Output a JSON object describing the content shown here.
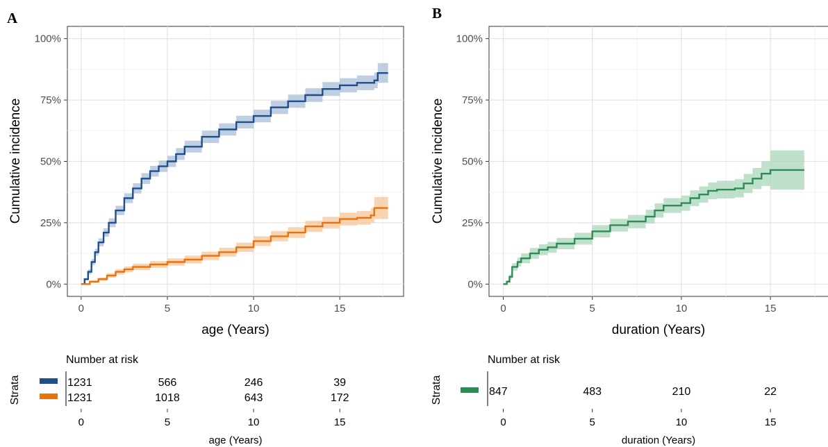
{
  "chart_data": [
    {
      "panel": "A",
      "type": "line",
      "xlabel": "age (Years)",
      "ylabel": "Cumulative incidence",
      "xlim": [
        -0.8,
        18.7
      ],
      "ylim": [
        -0.05,
        1.05
      ],
      "x_ticks": [
        0,
        5,
        10,
        15
      ],
      "y_ticks": [
        0,
        0.25,
        0.5,
        0.75,
        1.0
      ],
      "y_tick_labels": [
        "0%",
        "25%",
        "50%",
        "75%",
        "100%"
      ],
      "grid": true,
      "series": [
        {
          "color": "#1f4e8c",
          "band_color": "#a9bdd6",
          "points": [
            [
              0,
              0
            ],
            [
              0.2,
              0.02
            ],
            [
              0.4,
              0.05
            ],
            [
              0.6,
              0.09
            ],
            [
              0.8,
              0.13
            ],
            [
              1,
              0.17
            ],
            [
              1.3,
              0.21
            ],
            [
              1.6,
              0.25
            ],
            [
              2,
              0.3
            ],
            [
              2.5,
              0.35
            ],
            [
              3,
              0.39
            ],
            [
              3.5,
              0.43
            ],
            [
              4,
              0.46
            ],
            [
              4.5,
              0.48
            ],
            [
              5,
              0.5
            ],
            [
              5.5,
              0.53
            ],
            [
              6,
              0.56
            ],
            [
              7,
              0.6
            ],
            [
              8,
              0.63
            ],
            [
              9,
              0.66
            ],
            [
              10,
              0.685
            ],
            [
              11,
              0.72
            ],
            [
              12,
              0.745
            ],
            [
              13,
              0.77
            ],
            [
              14,
              0.795
            ],
            [
              15,
              0.81
            ],
            [
              16,
              0.82
            ],
            [
              17,
              0.83
            ],
            [
              17.2,
              0.86
            ],
            [
              17.8,
              0.86
            ]
          ],
          "band_halfwidth": [
            0,
            0.005,
            0.01,
            0.012,
            0.014,
            0.016,
            0.017,
            0.018,
            0.019,
            0.02,
            0.021,
            0.022,
            0.022,
            0.023,
            0.023,
            0.024,
            0.024,
            0.025,
            0.025,
            0.026,
            0.026,
            0.027,
            0.027,
            0.028,
            0.028,
            0.029,
            0.03,
            0.032,
            0.04,
            0.04
          ]
        },
        {
          "color": "#e8720c",
          "band_color": "#f7c59a",
          "points": [
            [
              0,
              0
            ],
            [
              0.5,
              0.01
            ],
            [
              1,
              0.02
            ],
            [
              1.5,
              0.035
            ],
            [
              2,
              0.05
            ],
            [
              2.5,
              0.06
            ],
            [
              3,
              0.07
            ],
            [
              4,
              0.08
            ],
            [
              5,
              0.09
            ],
            [
              6,
              0.1
            ],
            [
              7,
              0.115
            ],
            [
              8,
              0.13
            ],
            [
              9,
              0.15
            ],
            [
              10,
              0.175
            ],
            [
              11,
              0.195
            ],
            [
              12,
              0.21
            ],
            [
              13,
              0.235
            ],
            [
              14,
              0.25
            ],
            [
              15,
              0.265
            ],
            [
              16,
              0.27
            ],
            [
              16.8,
              0.28
            ],
            [
              17,
              0.31
            ],
            [
              17.8,
              0.31
            ]
          ],
          "band_halfwidth": [
            0,
            0.005,
            0.007,
            0.009,
            0.011,
            0.012,
            0.013,
            0.014,
            0.015,
            0.016,
            0.017,
            0.018,
            0.019,
            0.02,
            0.021,
            0.022,
            0.023,
            0.024,
            0.026,
            0.028,
            0.03,
            0.045,
            0.045
          ]
        }
      ],
      "risk_table": {
        "title": "Number at risk",
        "strata_label": "Strata",
        "xlabel": "age (Years)",
        "times": [
          0,
          5,
          10,
          15
        ],
        "rows": [
          {
            "color": "#1f4e8c",
            "counts": [
              "1231",
              "566",
              "246",
              "39"
            ]
          },
          {
            "color": "#e8720c",
            "counts": [
              "1231",
              "1018",
              "643",
              "172"
            ]
          }
        ]
      }
    },
    {
      "panel": "B",
      "type": "line",
      "xlabel": "duration (Years)",
      "ylabel": "Cumulative incidence",
      "xlim": [
        -0.8,
        18.7
      ],
      "ylim": [
        -0.05,
        1.05
      ],
      "x_ticks": [
        0,
        5,
        10,
        15
      ],
      "y_ticks": [
        0,
        0.25,
        0.5,
        0.75,
        1.0
      ],
      "y_tick_labels": [
        "0%",
        "25%",
        "50%",
        "75%",
        "100%"
      ],
      "grid": true,
      "series": [
        {
          "color": "#2e8b57",
          "band_color": "#a9d5b9",
          "points": [
            [
              0,
              0
            ],
            [
              0.2,
              0.01
            ],
            [
              0.35,
              0.03
            ],
            [
              0.5,
              0.07
            ],
            [
              0.8,
              0.09
            ],
            [
              1,
              0.105
            ],
            [
              1.5,
              0.125
            ],
            [
              2,
              0.14
            ],
            [
              2.5,
              0.15
            ],
            [
              3,
              0.165
            ],
            [
              4,
              0.185
            ],
            [
              5,
              0.215
            ],
            [
              6,
              0.24
            ],
            [
              7,
              0.255
            ],
            [
              8,
              0.275
            ],
            [
              8.5,
              0.3
            ],
            [
              9,
              0.32
            ],
            [
              10,
              0.33
            ],
            [
              10.5,
              0.35
            ],
            [
              11,
              0.365
            ],
            [
              11.5,
              0.38
            ],
            [
              12,
              0.385
            ],
            [
              13,
              0.39
            ],
            [
              13.5,
              0.41
            ],
            [
              14,
              0.43
            ],
            [
              14.5,
              0.45
            ],
            [
              15,
              0.465
            ],
            [
              16.9,
              0.465
            ]
          ],
          "band_halfwidth": [
            0,
            0.005,
            0.01,
            0.015,
            0.018,
            0.02,
            0.022,
            0.022,
            0.022,
            0.023,
            0.024,
            0.025,
            0.026,
            0.027,
            0.028,
            0.029,
            0.03,
            0.031,
            0.032,
            0.033,
            0.034,
            0.036,
            0.037,
            0.039,
            0.043,
            0.05,
            0.08,
            0.08
          ]
        }
      ],
      "risk_table": {
        "title": "Number at risk",
        "strata_label": "Strata",
        "xlabel": "duration (Years)",
        "times": [
          0,
          5,
          10,
          15
        ],
        "rows": [
          {
            "color": "#2e8b57",
            "counts": [
              "847",
              "483",
              "210",
              "22"
            ]
          }
        ]
      }
    }
  ]
}
